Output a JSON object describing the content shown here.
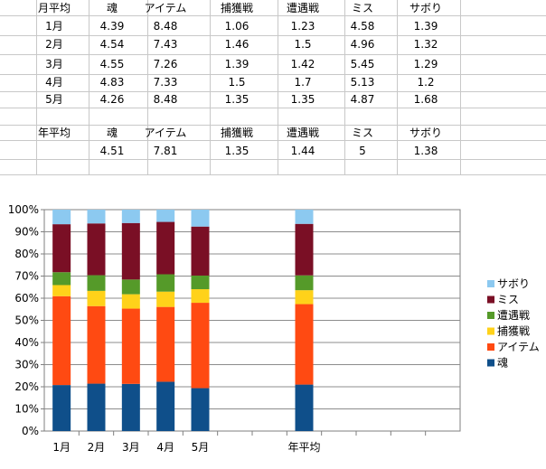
{
  "sheet": {
    "header": [
      "月平均",
      "魂",
      "アイテム",
      "捕獲戦",
      "遭遇戦",
      "ミス",
      "サボり"
    ],
    "rows": [
      [
        "1月",
        "4.39",
        "8.48",
        "1.06",
        "1.23",
        "4.58",
        "1.39"
      ],
      [
        "2月",
        "4.54",
        "7.43",
        "1.46",
        "1.5",
        "4.96",
        "1.32"
      ],
      [
        "3月",
        "4.55",
        "7.26",
        "1.39",
        "1.42",
        "5.45",
        "1.29"
      ],
      [
        "4月",
        "4.83",
        "7.33",
        "1.5",
        "1.7",
        "5.13",
        "1.2"
      ],
      [
        "5月",
        "4.26",
        "8.48",
        "1.35",
        "1.35",
        "4.87",
        "1.68"
      ]
    ],
    "annual_header": [
      "年平均",
      "魂",
      "アイテム",
      "捕獲戦",
      "遭遇戦",
      "ミス",
      "サボり"
    ],
    "annual_values": [
      "",
      "4.51",
      "7.81",
      "1.35",
      "1.44",
      "5",
      "1.38"
    ]
  },
  "chart_data": {
    "type": "bar",
    "stacked": "percent",
    "categories": [
      "1月",
      "2月",
      "3月",
      "4月",
      "5月",
      "",
      "",
      "年平均",
      "",
      "",
      "",
      ""
    ],
    "series": [
      {
        "name": "魂",
        "color": "#0f4f8a",
        "values": [
          4.39,
          4.54,
          4.55,
          4.83,
          4.26,
          null,
          null,
          4.51,
          null,
          null,
          null,
          null
        ]
      },
      {
        "name": "アイテム",
        "color": "#ff4a12",
        "values": [
          8.48,
          7.43,
          7.26,
          7.33,
          8.48,
          null,
          null,
          7.81,
          null,
          null,
          null,
          null
        ]
      },
      {
        "name": "捕獲戦",
        "color": "#ffd21a",
        "values": [
          1.06,
          1.46,
          1.39,
          1.5,
          1.35,
          null,
          null,
          1.35,
          null,
          null,
          null,
          null
        ]
      },
      {
        "name": "遭遇戦",
        "color": "#559a29",
        "values": [
          1.23,
          1.5,
          1.42,
          1.7,
          1.35,
          null,
          null,
          1.44,
          null,
          null,
          null,
          null
        ]
      },
      {
        "name": "ミス",
        "color": "#7a0f25",
        "values": [
          4.58,
          4.96,
          5.45,
          5.13,
          4.87,
          null,
          null,
          5,
          null,
          null,
          null,
          null
        ]
      },
      {
        "name": "サボり",
        "color": "#8cc9f0",
        "values": [
          1.39,
          1.32,
          1.29,
          1.2,
          1.68,
          null,
          null,
          1.38,
          null,
          null,
          null,
          null
        ]
      }
    ],
    "yticks": [
      "0%",
      "10%",
      "20%",
      "30%",
      "40%",
      "50%",
      "60%",
      "70%",
      "80%",
      "90%",
      "100%"
    ],
    "ylim": [
      0,
      100
    ],
    "grid": true,
    "legend": "right"
  }
}
